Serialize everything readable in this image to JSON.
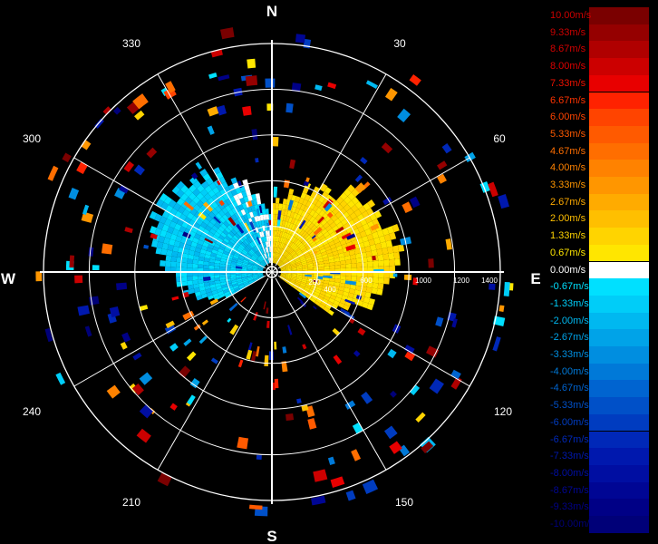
{
  "chart_data": {
    "type": "polar-radar",
    "compass": {
      "north": "N",
      "south": "S",
      "east": "E",
      "west": "W"
    },
    "angle_labels": [
      "30",
      "60",
      "120",
      "150",
      "210",
      "240",
      "300",
      "330"
    ],
    "range_rings": [
      300,
      600,
      900,
      1200,
      1500
    ],
    "range_tick_labels": [
      "200",
      "400",
      "600",
      "1000",
      "1200",
      "1400"
    ],
    "colorbar": [
      {
        "label": "10.00m/s",
        "color": "#7a0000",
        "text_color": "#cc0000"
      },
      {
        "label": "9.33m/s",
        "color": "#950000",
        "text_color": "#cc0000"
      },
      {
        "label": "8.67m/s",
        "color": "#b00000",
        "text_color": "#d40000"
      },
      {
        "label": "8.00m/s",
        "color": "#cc0000",
        "text_color": "#dd0000"
      },
      {
        "label": "7.33m/s",
        "color": "#e80000",
        "text_color": "#ee1100"
      },
      {
        "label": "6.67m/s",
        "color": "#ff2200",
        "text_color": "#ff3300"
      },
      {
        "label": "6.00m/s",
        "color": "#ff4400",
        "text_color": "#ff4400"
      },
      {
        "label": "5.33m/s",
        "color": "#ff5a00",
        "text_color": "#ff5a00"
      },
      {
        "label": "4.67m/s",
        "color": "#ff6e00",
        "text_color": "#ff6e00"
      },
      {
        "label": "4.00m/s",
        "color": "#ff8200",
        "text_color": "#ff8200"
      },
      {
        "label": "3.33m/s",
        "color": "#ff9600",
        "text_color": "#ff9600"
      },
      {
        "label": "2.67m/s",
        "color": "#ffab00",
        "text_color": "#ffab00"
      },
      {
        "label": "2.00m/s",
        "color": "#ffbf00",
        "text_color": "#ffbf00"
      },
      {
        "label": "1.33m/s",
        "color": "#ffd400",
        "text_color": "#ffd400"
      },
      {
        "label": "0.67m/s",
        "color": "#ffe600",
        "text_color": "#ffe600"
      },
      {
        "label": "0.00m/s",
        "color": "#ffffff",
        "text_color": "#ffffff"
      },
      {
        "label": "-0.67m/s",
        "color": "#00e0ff",
        "text_color": "#00e0ff"
      },
      {
        "label": "-1.33m/s",
        "color": "#00cdf8",
        "text_color": "#00cdf8"
      },
      {
        "label": "-2.00m/s",
        "color": "#00b8f0",
        "text_color": "#00b8f0"
      },
      {
        "label": "-2.67m/s",
        "color": "#00a3e8",
        "text_color": "#00a3e8"
      },
      {
        "label": "-3.33m/s",
        "color": "#008ee0",
        "text_color": "#008ee0"
      },
      {
        "label": "-4.00m/s",
        "color": "#0079d8",
        "text_color": "#0079d8"
      },
      {
        "label": "-4.67m/s",
        "color": "#0064d0",
        "text_color": "#0064d0"
      },
      {
        "label": "-5.33m/s",
        "color": "#0050c8",
        "text_color": "#0050c8"
      },
      {
        "label": "-6.00m/s",
        "color": "#003cc0",
        "text_color": "#003cc0"
      },
      {
        "label": "-6.67m/s",
        "color": "#0028b8",
        "text_color": "#0028b8"
      },
      {
        "label": "-7.33m/s",
        "color": "#0018ae",
        "text_color": "#0018ae"
      },
      {
        "label": "-8.00m/s",
        "color": "#000ea2",
        "text_color": "#000ea2"
      },
      {
        "label": "-8.67m/s",
        "color": "#000694",
        "text_color": "#000694"
      },
      {
        "label": "-9.33m/s",
        "color": "#000086",
        "text_color": "#000086"
      },
      {
        "label": "-10.00m/s",
        "color": "#000078",
        "text_color": "#000078"
      }
    ],
    "background_color": "#000000",
    "grid_color": "#ffffff"
  }
}
